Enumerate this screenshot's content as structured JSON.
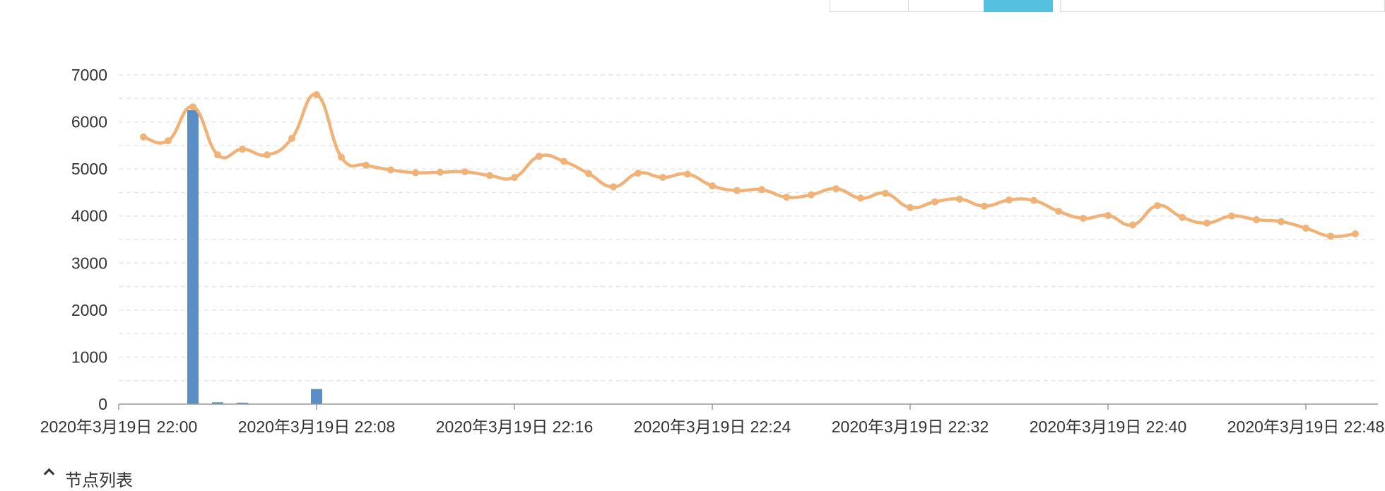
{
  "toolbar": {
    "segments": [
      {
        "label": "",
        "active": false
      },
      {
        "label": "",
        "active": false
      },
      {
        "label": "",
        "active": true
      },
      {
        "label": "",
        "active": false
      }
    ]
  },
  "colors": {
    "bar": "#5b8ec4",
    "line": "#f0b277",
    "grid": "#e6e6e6",
    "axis": "#999999",
    "active_segment": "#56c0e0"
  },
  "chart_data": {
    "type": "bar+line",
    "title": "",
    "xlabel": "",
    "ylabel": "",
    "ylim": [
      0,
      7000
    ],
    "yticks": [
      "0",
      "1000",
      "2000",
      "3000",
      "4000",
      "5000",
      "6000",
      "7000"
    ],
    "xticks": [
      "2020年3月19日 22:00",
      "2020年3月19日 22:08",
      "2020年3月19日 22:16",
      "2020年3月19日 22:24",
      "2020年3月19日 22:32",
      "2020年3月19日 22:40",
      "2020年3月19日 22:48"
    ],
    "grid": true,
    "series": [
      {
        "type": "bar",
        "x_minutes": [
          3,
          4,
          5,
          8
        ],
        "values": [
          6250,
          40,
          30,
          320
        ]
      },
      {
        "type": "line",
        "x_minutes": [
          1,
          2,
          3,
          4,
          5,
          6,
          7,
          8,
          9,
          10,
          11,
          12,
          13,
          14,
          15,
          16,
          17,
          18,
          19,
          20,
          21,
          22,
          23,
          24,
          25,
          26,
          27,
          28,
          29,
          30,
          31,
          32,
          33,
          34,
          35,
          36,
          37,
          38,
          39,
          40,
          41,
          42,
          43,
          44,
          45,
          46,
          47,
          48,
          49,
          50
        ],
        "values": [
          5680,
          5600,
          6320,
          5300,
          5420,
          5300,
          5650,
          6580,
          5250,
          5080,
          4980,
          4920,
          4930,
          4940,
          4860,
          4820,
          5270,
          5160,
          4900,
          4620,
          4910,
          4820,
          4890,
          4640,
          4540,
          4560,
          4400,
          4450,
          4580,
          4380,
          4480,
          4180,
          4300,
          4360,
          4210,
          4340,
          4330,
          4100,
          3950,
          4010,
          3810,
          4220,
          3970,
          3850,
          4000,
          3920,
          3880,
          3740,
          3570,
          3620
        ]
      }
    ]
  },
  "footer": {
    "section_label": "节点列表"
  }
}
